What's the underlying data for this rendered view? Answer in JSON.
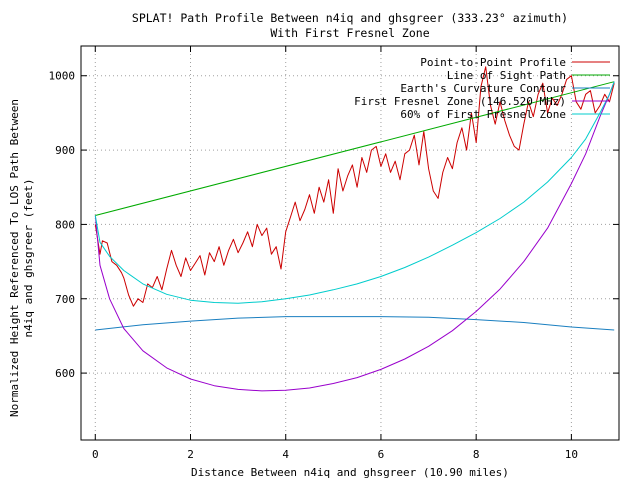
{
  "chart_data": {
    "type": "line",
    "title_line1": "SPLAT! Path Profile Between n4iq and ghsgreer (333.23° azimuth)",
    "title_line2": "With First Fresnel Zone",
    "xlabel": "Distance Between n4iq and ghsgreer (10.90 miles)",
    "ylabel_line1": "Normalized Height Referenced To LOS Path Between",
    "ylabel_line2": "n4iq and ghsgreer (feet)",
    "xlim": [
      -0.3,
      11.0
    ],
    "ylim": [
      510,
      1040
    ],
    "x_ticks": [
      0,
      2,
      4,
      6,
      8,
      10
    ],
    "y_ticks": [
      600,
      700,
      800,
      900,
      1000
    ],
    "grid": true,
    "legend_position": "top-right",
    "series": [
      {
        "name": "Point-to-Point Profile",
        "color": "#cc0000",
        "x": [
          0.0,
          0.1,
          0.15,
          0.25,
          0.35,
          0.45,
          0.55,
          0.6,
          0.7,
          0.8,
          0.9,
          1.0,
          1.1,
          1.2,
          1.3,
          1.4,
          1.5,
          1.6,
          1.7,
          1.8,
          1.9,
          2.0,
          2.1,
          2.2,
          2.3,
          2.4,
          2.5,
          2.6,
          2.7,
          2.8,
          2.9,
          3.0,
          3.1,
          3.2,
          3.3,
          3.4,
          3.5,
          3.6,
          3.7,
          3.8,
          3.9,
          4.0,
          4.1,
          4.2,
          4.3,
          4.4,
          4.5,
          4.6,
          4.7,
          4.8,
          4.9,
          5.0,
          5.1,
          5.2,
          5.3,
          5.4,
          5.5,
          5.6,
          5.7,
          5.8,
          5.9,
          6.0,
          6.1,
          6.2,
          6.3,
          6.4,
          6.5,
          6.6,
          6.7,
          6.8,
          6.9,
          7.0,
          7.1,
          7.2,
          7.3,
          7.4,
          7.5,
          7.6,
          7.7,
          7.8,
          7.9,
          8.0,
          8.1,
          8.2,
          8.3,
          8.4,
          8.5,
          8.6,
          8.7,
          8.8,
          8.9,
          9.0,
          9.1,
          9.2,
          9.3,
          9.4,
          9.5,
          9.6,
          9.7,
          9.8,
          9.9,
          10.0,
          10.1,
          10.2,
          10.3,
          10.4,
          10.5,
          10.6,
          10.7,
          10.8,
          10.9
        ],
        "y": [
          800,
          760,
          778,
          775,
          750,
          745,
          735,
          728,
          705,
          690,
          700,
          695,
          720,
          715,
          730,
          712,
          740,
          765,
          745,
          730,
          755,
          738,
          748,
          758,
          732,
          762,
          750,
          770,
          745,
          765,
          780,
          762,
          775,
          790,
          770,
          800,
          785,
          795,
          760,
          770,
          740,
          790,
          810,
          830,
          805,
          820,
          840,
          815,
          850,
          830,
          860,
          815,
          875,
          845,
          865,
          880,
          850,
          890,
          870,
          900,
          905,
          878,
          895,
          870,
          885,
          860,
          895,
          900,
          920,
          880,
          925,
          875,
          845,
          835,
          870,
          890,
          875,
          910,
          930,
          900,
          950,
          910,
          985,
          1012,
          960,
          935,
          965,
          940,
          920,
          905,
          900,
          935,
          965,
          945,
          975,
          990,
          950,
          970,
          960,
          975,
          995,
          1000,
          965,
          955,
          975,
          980,
          950,
          960,
          975,
          965,
          990
        ]
      },
      {
        "name": "Line of Sight Path",
        "color": "#00aa00",
        "x": [
          0.0,
          10.9
        ],
        "y": [
          812,
          992
        ]
      },
      {
        "name": "Earth's Curvature Contour",
        "color": "#1a7fc0",
        "x": [
          0.0,
          1.0,
          2.0,
          3.0,
          4.0,
          4.5,
          5.0,
          6.0,
          7.0,
          8.0,
          9.0,
          10.0,
          10.9
        ],
        "y": [
          658,
          665,
          670,
          674,
          676,
          676,
          676,
          676,
          675,
          672,
          668,
          662,
          658
        ]
      },
      {
        "name": "First Fresnel Zone (146.520 MHz)",
        "color": "#9900cc",
        "x": [
          0.0,
          0.1,
          0.3,
          0.6,
          1.0,
          1.5,
          2.0,
          2.5,
          3.0,
          3.5,
          4.0,
          4.5,
          5.0,
          5.5,
          6.0,
          6.5,
          7.0,
          7.5,
          8.0,
          8.5,
          9.0,
          9.5,
          10.0,
          10.3,
          10.6,
          10.8,
          10.9
        ],
        "y": [
          812,
          745,
          700,
          660,
          630,
          607,
          592,
          583,
          578,
          576,
          577,
          580,
          586,
          594,
          605,
          619,
          636,
          657,
          683,
          713,
          750,
          795,
          855,
          895,
          945,
          975,
          992
        ]
      },
      {
        "name": "60% of First Fresnel Zone",
        "color": "#00cccc",
        "x": [
          0.0,
          0.1,
          0.3,
          0.6,
          1.0,
          1.5,
          2.0,
          2.5,
          3.0,
          3.5,
          4.0,
          4.5,
          5.0,
          5.5,
          6.0,
          6.5,
          7.0,
          7.5,
          8.0,
          8.5,
          9.0,
          9.5,
          10.0,
          10.3,
          10.6,
          10.8,
          10.9
        ],
        "y": [
          812,
          776,
          757,
          738,
          720,
          706,
          698,
          695,
          694,
          696,
          700,
          705,
          712,
          720,
          730,
          742,
          756,
          772,
          789,
          808,
          830,
          857,
          890,
          915,
          950,
          975,
          992
        ]
      }
    ]
  }
}
